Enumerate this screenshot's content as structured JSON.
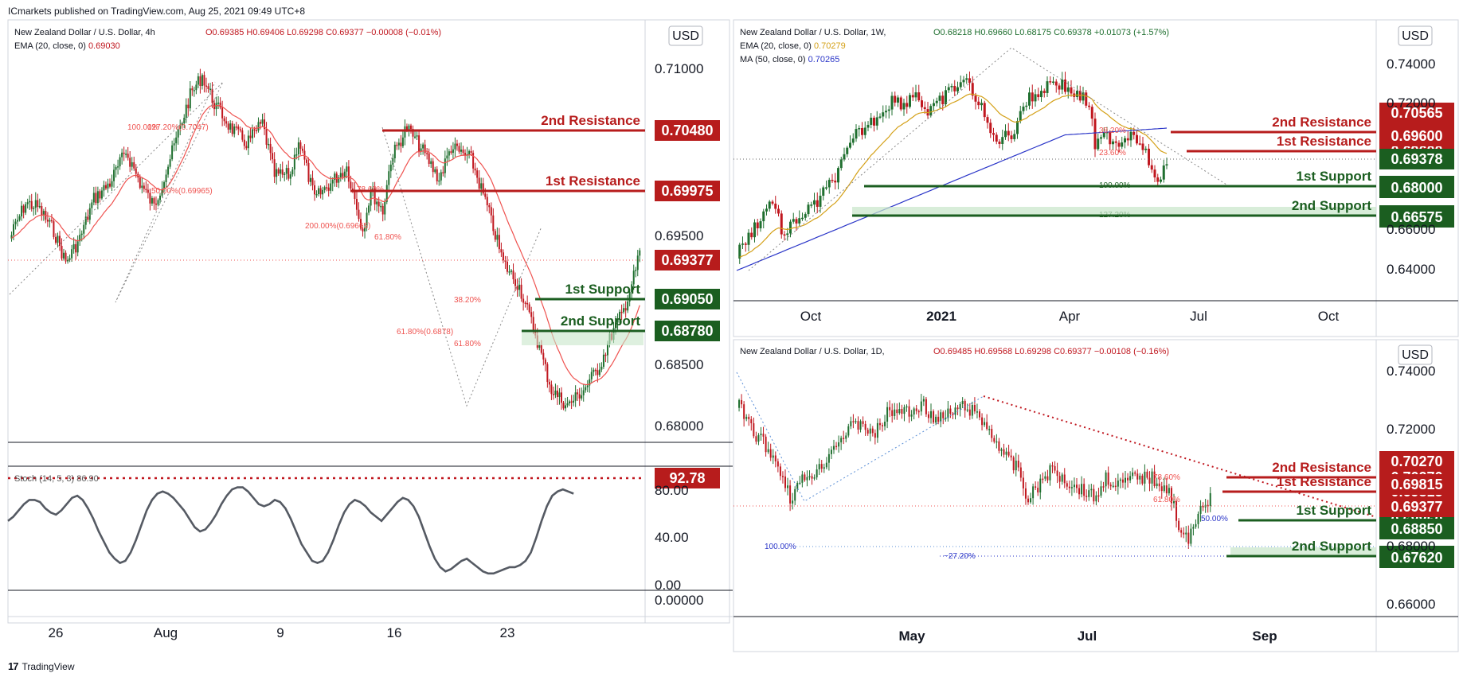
{
  "publisher": "ICmarkets published on TradingView.com, Aug 25, 2021 09:49 UTC+8",
  "footer_brand": "TradingView",
  "colors": {
    "bull": "#1f6f2f",
    "bear": "#c0171f",
    "resistance": "#b71c1c",
    "support": "#1b5e20",
    "ema": "#ef5350",
    "ma50": "#2a35c8",
    "ema_weekly": "#d4a017",
    "stoch": "#555a63",
    "fib": "#ef5350"
  },
  "left": {
    "title": "New Zealand Dollar / U.S. Dollar, 4h",
    "ohlc": "O0.69385 H0.69406 L0.69298 C0.69377 −0.00008 (−0.01%)",
    "ema_label": "EMA (20, close, 0)",
    "ema_value": "0.69030",
    "currency": "USD",
    "price_ticks": [
      "0.71000",
      "0.69500",
      "0.68500",
      "0.68000"
    ],
    "x_ticks": [
      "26",
      "Aug",
      "9",
      "16",
      "23"
    ],
    "resistance2_label": "2nd Resistance",
    "resistance2_value": "0.70480",
    "resistance1_label": "1st Resistance",
    "resistance1_value": "0.69975",
    "current_value": "0.69377",
    "support1_label": "1st Support",
    "support1_value": "0.69050",
    "support2_label": "2nd Support",
    "support2_value": "0.68780",
    "fib_labels": [
      "127.20%(0.7047)",
      "100.00%",
      "78.60%",
      "200.00%(0.69665)",
      "61.80%",
      "38.20%",
      "61.80%(0.6878)",
      "61.80%",
      "50.00%(0.69965)"
    ],
    "stoch_label": "Stoch (14, 5, 3)",
    "stoch_value": "86.90",
    "stoch_badge": "92.78",
    "stoch_ticks": [
      "80.00",
      "40.00",
      "0.00",
      "0.00000"
    ],
    "stoch_values": [
      60,
      64,
      70,
      76,
      80,
      80,
      78,
      72,
      68,
      66,
      70,
      76,
      82,
      84,
      80,
      72,
      62,
      50,
      40,
      30,
      24,
      20,
      22,
      30,
      42,
      56,
      70,
      80,
      86,
      88,
      86,
      82,
      76,
      70,
      62,
      54,
      50,
      52,
      58,
      66,
      76,
      84,
      90,
      92,
      92,
      88,
      82,
      76,
      74,
      76,
      80,
      78,
      72,
      62,
      50,
      38,
      30,
      22,
      20,
      22,
      30,
      42,
      56,
      68,
      76,
      80,
      78,
      74,
      68,
      64,
      60,
      66,
      72,
      78,
      82,
      80,
      74,
      64,
      50,
      36,
      24,
      16,
      12,
      14,
      18,
      22,
      24,
      20,
      16,
      12,
      10,
      10,
      12,
      14,
      16,
      16,
      18,
      22,
      30,
      44,
      60,
      74,
      84,
      88,
      90,
      88,
      86
    ]
  },
  "right_top": {
    "title": "New Zealand Dollar / U.S. Dollar, 1W,",
    "ohlc": "O0.68218 H0.69660 L0.68175 C0.69378 +0.01073 (+1.57%)",
    "ema_label": "EMA (20, close, 0)",
    "ema_value": "0.70279",
    "ma_label": "MA (50, close, 0)",
    "ma_value": "0.70265",
    "currency": "USD",
    "price_ticks": [
      "0.74000",
      "0.72000",
      "0.66000",
      "0.64000"
    ],
    "x_ticks": [
      "Oct",
      "2021",
      "Apr",
      "Jul",
      "Oct"
    ],
    "resistance2_label": "2nd Resistance",
    "resistance2_value": "0.70565",
    "resistance1_label": "1st Resistance",
    "resistance1_value": "0.69600",
    "current_value": "0.69378",
    "support1_label": "1st Support",
    "support1_value": "0.68000",
    "support2_label": "2nd Support",
    "support2_value": "0.66575",
    "fib_labels": [
      "38.20%",
      "23.60%",
      "100.00%",
      "127.20%"
    ]
  },
  "right_bottom": {
    "title": "New Zealand Dollar / U.S. Dollar, 1D,",
    "ohlc": "O0.69485 H0.69568 L0.69298 C0.69377 −0.00108 (−0.16%)",
    "currency": "USD",
    "price_ticks": [
      "0.74000",
      "0.72000",
      "0.68000",
      "0.66000"
    ],
    "x_ticks": [
      "May",
      "Jul",
      "Sep"
    ],
    "resistance2_label": "2nd Resistance",
    "resistance2_value": "0.70270",
    "resistance1_label": "1st Resistance",
    "resistance1_value": "0.69815",
    "current_value": "0.69377",
    "support1_label": "1st Support",
    "support1_value": "0.68850",
    "support2_label": "2nd Support",
    "support2_value": "0.67620",
    "fib_labels": [
      "78.60%",
      "61.80%",
      "50.00%",
      "100.00%",
      "−27.20%"
    ]
  }
}
